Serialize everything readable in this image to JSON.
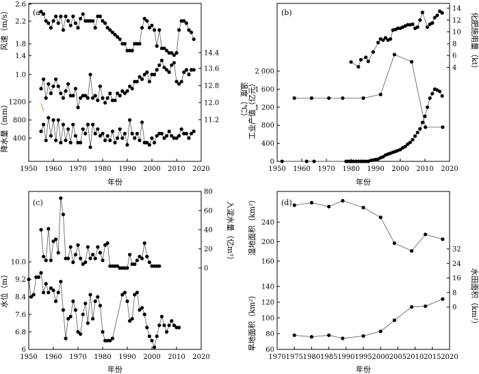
{
  "chart_data": [
    {
      "id": "a",
      "type": "line",
      "panel_label": "(a)",
      "xlabel": "年份",
      "xlim": [
        1950,
        2020
      ],
      "xticks": [
        "1950",
        "1960",
        "1970",
        "1980",
        "1990",
        "2000",
        "2010",
        "2020"
      ],
      "axes": [
        {
          "label": "风速（m/s）",
          "side": "left",
          "ticks": [
            "1.8",
            "2.2",
            "2.6"
          ]
        },
        {
          "label": "降水量（mm）",
          "side": "left",
          "ticks": [
            "400",
            "800",
            "1200"
          ]
        },
        {
          "label": "温度（℃）",
          "side": "right",
          "ticks": [
            "11.2",
            "12.0",
            "12.8",
            "13.6",
            "14.4"
          ]
        },
        {
          "label": "",
          "side": "left",
          "ticks": [
            "1.0",
            "1.4"
          ]
        }
      ],
      "series": [
        {
          "scale": {
            "data": [
              1.8,
              2.6
            ],
            "pix": [
              64.0,
              10.5
            ]
          },
          "x": [
            1955,
            1956,
            1957,
            1958,
            1959,
            1960,
            1961,
            1962,
            1963,
            1964,
            1965,
            1966,
            1967,
            1968,
            1969,
            1970,
            1971,
            1972,
            1973,
            1974,
            1975,
            1976,
            1977,
            1978,
            1979,
            1980,
            1981,
            1982,
            1983,
            1984,
            1985,
            1986,
            1987,
            1988,
            1989,
            1990,
            1991,
            1992,
            1993,
            1994,
            1995,
            1996,
            1997,
            1998,
            1999,
            2000,
            2001,
            2002,
            2003,
            2004,
            2005,
            2006,
            2007,
            2008,
            2009,
            2010,
            2011,
            2012,
            2013,
            2014,
            2015,
            2016,
            2017
          ],
          "y": [
            2.5,
            2.45,
            2.3,
            2.25,
            2.15,
            2.3,
            2.4,
            2.25,
            2.4,
            2.1,
            2.4,
            2.3,
            2.2,
            2.4,
            2.25,
            2.15,
            2.35,
            2.45,
            2.3,
            2.3,
            2.3,
            2.3,
            2.15,
            2.4,
            2.4,
            2.3,
            2.25,
            2.15,
            2.1,
            2.05,
            2.0,
            1.95,
            1.9,
            1.8,
            1.8,
            1.65,
            1.65,
            1.65,
            1.8,
            1.8,
            1.8,
            2.15,
            2.35,
            2.3,
            2.15,
            2.2,
            2.1,
            1.75,
            2.1,
            1.7,
            1.7,
            1.65,
            1.6,
            1.6,
            1.55,
            1.6,
            2.1,
            2.3,
            2.3,
            2.25,
            2.1,
            2.05,
            1.9
          ]
        },
        {
          "scale": {
            "data": [
              400,
              1200
            ],
            "pix": [
              202.0,
              149.0
            ]
          },
          "x": [
            1955,
            1956,
            1957,
            1958,
            1959,
            1960,
            1961,
            1962,
            1963,
            1964,
            1965,
            1966,
            1967,
            1968,
            1969,
            1970,
            1971,
            1972,
            1973,
            1974,
            1975,
            1976,
            1977,
            1978,
            1979,
            1980,
            1981,
            1982,
            1983,
            1984,
            1985,
            1986,
            1987,
            1988,
            1989,
            1990,
            1991,
            1992,
            1993,
            1994,
            1995,
            1996,
            1997,
            1998,
            1999,
            2000,
            2001,
            2002,
            2003,
            2004,
            2005,
            2006,
            2007,
            2008,
            2009,
            2010,
            2011,
            2012,
            2013,
            2014,
            2015,
            2016,
            2017
          ],
          "y": [
            550,
            700,
            350,
            850,
            450,
            800,
            350,
            800,
            300,
            700,
            350,
            600,
            300,
            700,
            450,
            300,
            300,
            600,
            500,
            700,
            200,
            700,
            500,
            600,
            450,
            500,
            350,
            450,
            350,
            550,
            300,
            400,
            600,
            400,
            500,
            250,
            800,
            500,
            400,
            500,
            350,
            750,
            300,
            300,
            250,
            400,
            300,
            450,
            500,
            500,
            400,
            450,
            550,
            450,
            400,
            400,
            450,
            600,
            500,
            500,
            400,
            500,
            550
          ]
        },
        {
          "scale": {
            "data": [
              1.0,
              1.4
            ],
            "pix": [
              109.0,
              81.5
            ]
          },
          "x": [
            1955,
            1956,
            1957,
            1958,
            1959,
            1960,
            1961,
            1962,
            1963,
            1964,
            1965,
            1966,
            1967,
            1968,
            1969,
            1970,
            1971,
            1972,
            1973,
            1974,
            1975,
            1976,
            1977,
            1978,
            1979,
            1980,
            1981,
            1982,
            1983,
            1984,
            1985,
            1986,
            1987,
            1988,
            1989,
            1990,
            1991,
            1992,
            1993,
            1994,
            1995,
            1996,
            1997,
            1998,
            1999,
            2000,
            2001,
            2002,
            2003,
            2004,
            2005,
            2006,
            2007,
            2008,
            2009,
            2010,
            2011,
            2012,
            2013,
            2014,
            2015,
            2016,
            2017
          ],
          "y": [
            0.7,
            0.9,
            0.5,
            0.8,
            0.6,
            0.75,
            0.9,
            0.75,
            0.6,
            0.5,
            0.65,
            0.8,
            0.55,
            0.55,
            0.7,
            0.3,
            0.5,
            0.55,
            0.55,
            0.5,
            1.0,
            0.5,
            0.55,
            0.45,
            0.75,
            0.5,
            0.4,
            0.5,
            0.6,
            0.45,
            0.45,
            0.6,
            0.55,
            0.65,
            0.6,
            0.65,
            0.75,
            0.7,
            0.85,
            0.85,
            0.95,
            0.9,
            1.0,
            1.05,
            0.85,
            1.0,
            1.0,
            1.1,
            1.2,
            1.3,
            1.15,
            1.1,
            1.05,
            1.2,
            1.25,
            0.85,
            0.8,
            0.85,
            1.05,
            1.1,
            1.0,
            1.1,
            1.1
          ]
        }
      ],
      "annotation_line": {
        "x": [
          1955,
          1956
        ],
        "y": [
          1170,
          1000
        ],
        "color": "#e8a070"
      }
    },
    {
      "id": "b",
      "type": "line",
      "panel_label": "(b)",
      "xlabel": "年份",
      "xlim": [
        1950,
        2020
      ],
      "xticks": [
        "1950",
        "1960",
        "1970",
        "1980",
        "1990",
        "2000",
        "2010",
        "2020"
      ],
      "axes": [
        {
          "label": "工业产值（亿元）",
          "side": "left",
          "ticks": [
            "0",
            "400",
            "800",
            "1 200",
            "1 600",
            "2 000"
          ]
        },
        {
          "label": "化肥施用量（kt）",
          "side": "right",
          "ticks": [
            "4",
            "6",
            "8",
            "10",
            "12",
            "14"
          ]
        }
      ],
      "series": [
        {
          "name": "",
          "axis": "left",
          "x": [
            1952,
            1962,
            1965,
            1978,
            1979,
            1980,
            1981,
            1982,
            1983,
            1984,
            1985,
            1986,
            1987,
            1988,
            1989,
            1990,
            1991,
            1992,
            1993,
            1994,
            1995,
            1996,
            1997,
            1998,
            1999,
            2000,
            2001,
            2002,
            2003,
            2004,
            2005,
            2006,
            2007,
            2008,
            2009,
            2010,
            2011,
            2012,
            2013,
            2014,
            2015,
            2016,
            2017
          ],
          "y": [
            0,
            0,
            0,
            0,
            0,
            0,
            0,
            0,
            0,
            0,
            0,
            0,
            0,
            20,
            30,
            40,
            50,
            80,
            100,
            140,
            160,
            180,
            200,
            220,
            240,
            260,
            300,
            330,
            380,
            420,
            480,
            560,
            640,
            720,
            860,
            1000,
            1200,
            1400,
            1500,
            1600,
            1580,
            1550,
            1450
          ]
        },
        {
          "name": "",
          "axis": "right",
          "x": [
            1980,
            1983,
            1984,
            1986,
            1987,
            1989,
            1991,
            1992,
            1993,
            1994,
            1995,
            1996,
            1997,
            1998,
            1999,
            2000,
            2001,
            2002,
            2003,
            2004,
            2005,
            2006,
            2007,
            2008,
            2009,
            2011,
            2012,
            2013,
            2014,
            2015,
            2016,
            2017
          ],
          "y": [
            4.9,
            4.1,
            5.3,
            5.7,
            5.0,
            6.6,
            8.2,
            8.8,
            8.6,
            9.0,
            8.6,
            8.8,
            10.3,
            10.4,
            10.6,
            10.6,
            10.8,
            11.0,
            11.2,
            11.2,
            11.3,
            10.6,
            10.8,
            12.0,
            13.3,
            10.8,
            11.3,
            11.5,
            12.4,
            12.8,
            13.5,
            13.2
          ]
        }
      ]
    },
    {
      "id": "c",
      "type": "line",
      "panel_label": "(c)",
      "xlabel": "年份",
      "xlim": [
        1950,
        2020
      ],
      "xticks": [
        "1950",
        "1960",
        "1970",
        "1980",
        "1990",
        "2000",
        "2010",
        "2020"
      ],
      "axes": [
        {
          "label": "水位（m）",
          "side": "left",
          "ticks": [
            "6",
            "6.8",
            "7.6",
            "8.4",
            "9.2",
            "10.0"
          ]
        },
        {
          "label": "入淀水量（亿m³）",
          "side": "right",
          "ticks": [
            "0",
            "20",
            "40",
            "60",
            "80"
          ]
        }
      ],
      "series": [
        {
          "name": "",
          "axis": "left",
          "x": [
            1950,
            1951,
            1952,
            1953,
            1954,
            1955,
            1956,
            1957,
            1958,
            1959,
            1960,
            1961,
            1962,
            1963,
            1964,
            1965,
            1966,
            1967,
            1968,
            1969,
            1970,
            1971,
            1972,
            1973,
            1974,
            1975,
            1976,
            1977,
            1978,
            1979,
            1980,
            1981,
            1982,
            1983,
            1984,
            1988,
            1989,
            1990,
            1991,
            1992,
            1993,
            1994,
            1995,
            1996,
            1997,
            1998,
            1999,
            2000,
            2001,
            2002,
            2003,
            2004,
            2005,
            2006,
            2007,
            2008,
            2009,
            2010,
            2011
          ],
          "y": [
            9.2,
            8.4,
            8.5,
            9.3,
            9.3,
            9.5,
            8.6,
            9.0,
            8.6,
            8.8,
            8.7,
            8.2,
            8.6,
            9.1,
            7.8,
            6.5,
            7.4,
            7.5,
            8.2,
            7.8,
            6.8,
            6.7,
            7.6,
            8.1,
            7.2,
            8.5,
            7.4,
            8.2,
            8.4,
            8.0,
            6.8,
            6.4,
            6.4,
            6.4,
            6.5,
            8.5,
            8.6,
            8.2,
            7.3,
            7.4,
            8.5,
            8.6,
            7.8,
            7.9,
            7.6,
            7.0,
            6.6,
            6.4,
            6.1,
            6.6,
            7.1,
            7.5,
            7.1,
            6.8,
            7.1,
            7.3,
            7.1,
            7.0,
            7.0
          ]
        },
        {
          "name": "",
          "axis": "right",
          "x": [
            1955,
            1956,
            1957,
            1958,
            1959,
            1960,
            1961,
            1962,
            1963,
            1964,
            1965,
            1966,
            1967,
            1968,
            1969,
            1970,
            1971,
            1972,
            1973,
            1974,
            1975,
            1976,
            1977,
            1978,
            1979,
            1980,
            1981,
            1982,
            1983,
            1984,
            1985,
            1986,
            1987,
            1988,
            1989,
            1990,
            1991,
            1992,
            1993,
            1994,
            1995,
            1996,
            1997,
            1998,
            1999,
            2000,
            2001,
            2002,
            2003
          ],
          "y": [
            40,
            12,
            8,
            41,
            8,
            28,
            30,
            16,
            73,
            56,
            10,
            10,
            22,
            6,
            14,
            24,
            10,
            4,
            6,
            22,
            10,
            14,
            10,
            22,
            16,
            8,
            24,
            26,
            2,
            2,
            2,
            2,
            0,
            0,
            0,
            0,
            14,
            4,
            4,
            8,
            12,
            10,
            26,
            12,
            6,
            2,
            2,
            2,
            2
          ]
        }
      ]
    },
    {
      "id": "d",
      "type": "line",
      "panel_label": "(d)",
      "xlabel": "年份",
      "xlim": [
        1970,
        2020
      ],
      "xticks": [
        "1970",
        "1975",
        "1980",
        "1985",
        "1990",
        "1995",
        "2000",
        "2005",
        "2010",
        "2015",
        "2020"
      ],
      "axes": [
        {
          "label": "湿地面积（km²）",
          "side": "left",
          "ticks": [
            "160",
            "200",
            "240"
          ]
        },
        {
          "label": "旱地面积（km²）",
          "side": "left",
          "ticks": [
            "60",
            "80",
            "100",
            "120",
            "140"
          ]
        },
        {
          "label": "水田面积（km²）",
          "side": "right",
          "ticks": [
            "0",
            "8",
            "16",
            "24",
            "32"
          ]
        }
      ],
      "series": [
        {
          "name": "",
          "axis": "wetland",
          "x": [
            1975,
            1980,
            1985,
            1989,
            1995,
            2000,
            2004,
            2009,
            2013,
            2018
          ],
          "y": [
            275,
            280,
            272,
            284,
            270,
            250,
            197,
            181,
            215,
            205
          ]
        },
        {
          "name": "",
          "axis": "dryland",
          "x": [
            1975,
            1980,
            1985,
            1989,
            1995,
            2000,
            2004,
            2009,
            2013,
            2018
          ],
          "y": [
            115,
            115,
            115,
            115,
            115,
            117,
            139,
            135,
            99,
            99
          ]
        },
        {
          "name": "",
          "axis": "paddy",
          "x": [
            1975,
            1980,
            1985,
            1989,
            1995,
            2000,
            2004,
            2009,
            2013,
            2018
          ],
          "y": [
            -12,
            -14,
            -12,
            -16,
            -13,
            -7,
            7,
            24,
            25,
            34
          ]
        }
      ]
    }
  ]
}
